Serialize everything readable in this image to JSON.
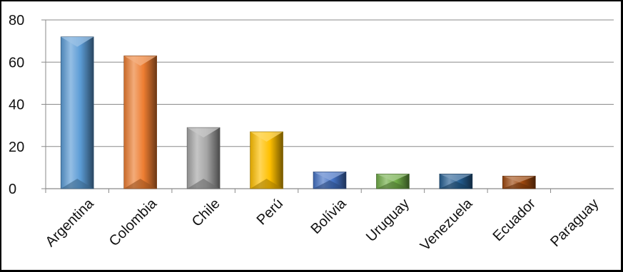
{
  "chart_data": {
    "type": "bar",
    "categories": [
      "Argentina",
      "Colombia",
      "Chile",
      "Perú",
      "Bolívia",
      "Uruguay",
      "Venezuela",
      "Ecuador",
      "Paraguay"
    ],
    "values": [
      72,
      63,
      29,
      27,
      8,
      7,
      7,
      6,
      0
    ],
    "colors": [
      "#5b9bd5",
      "#ed7d31",
      "#a5a5a5",
      "#ffc000",
      "#4472c4",
      "#70ad47",
      "#255e91",
      "#9e480e",
      "#636363"
    ],
    "title": "",
    "xlabel": "",
    "ylabel": "",
    "ylim": [
      0,
      80
    ],
    "yticks": [
      0,
      20,
      40,
      60,
      80
    ],
    "grid": true,
    "legend": "none"
  }
}
